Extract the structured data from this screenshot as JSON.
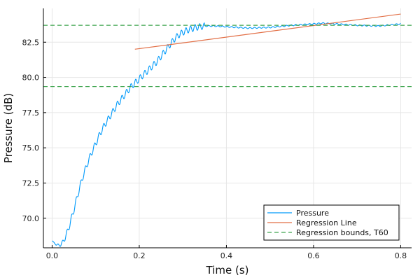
{
  "chart_data": {
    "type": "line",
    "xlabel": "Time (s)",
    "ylabel": "Pressure (dB)",
    "xlim": [
      -0.02,
      0.825
    ],
    "ylim": [
      67.9,
      84.9
    ],
    "xticks": [
      0.0,
      0.2,
      0.4,
      0.6,
      0.8
    ],
    "xtick_labels": [
      "0.0",
      "0.2",
      "0.4",
      "0.6",
      "0.8"
    ],
    "yticks": [
      70.0,
      72.5,
      75.0,
      77.5,
      80.0,
      82.5
    ],
    "ytick_labels": [
      "70.0",
      "72.5",
      "75.0",
      "77.5",
      "80.0",
      "82.5"
    ],
    "grid": true,
    "legend_position": "bottom-right",
    "series": [
      {
        "name": "Pressure",
        "color": "#009AFA",
        "style": "solid",
        "x": [
          0.0,
          0.01,
          0.02,
          0.03,
          0.04,
          0.05,
          0.06,
          0.07,
          0.08,
          0.09,
          0.1,
          0.11,
          0.12,
          0.13,
          0.14,
          0.15,
          0.16,
          0.17,
          0.18,
          0.19,
          0.2,
          0.21,
          0.22,
          0.23,
          0.24,
          0.25,
          0.26,
          0.27,
          0.28,
          0.29,
          0.3,
          0.31,
          0.32,
          0.33,
          0.34,
          0.35,
          0.37,
          0.4,
          0.45,
          0.5,
          0.55,
          0.6,
          0.62,
          0.65,
          0.7,
          0.75,
          0.8
        ],
        "y": [
          68.4,
          68.1,
          68.1,
          68.6,
          69.5,
          70.6,
          71.8,
          72.9,
          73.8,
          74.6,
          75.3,
          76.0,
          76.6,
          77.1,
          77.6,
          78.1,
          78.5,
          78.9,
          79.3,
          79.6,
          79.9,
          80.2,
          80.5,
          80.8,
          81.1,
          81.5,
          81.9,
          82.3,
          82.7,
          83.0,
          83.2,
          83.35,
          83.45,
          83.55,
          83.6,
          83.65,
          83.65,
          83.6,
          83.5,
          83.55,
          83.7,
          83.8,
          83.85,
          83.8,
          83.7,
          83.65,
          83.8
        ]
      },
      {
        "name": "Regression Line",
        "color": "#E26F46",
        "style": "solid",
        "x": [
          0.19,
          0.8
        ],
        "y": [
          82.0,
          84.5
        ]
      },
      {
        "name": "Regression bounds, T60",
        "color": "#3EA44E",
        "style": "dashed",
        "hlines": [
          83.7,
          79.35
        ]
      }
    ]
  }
}
